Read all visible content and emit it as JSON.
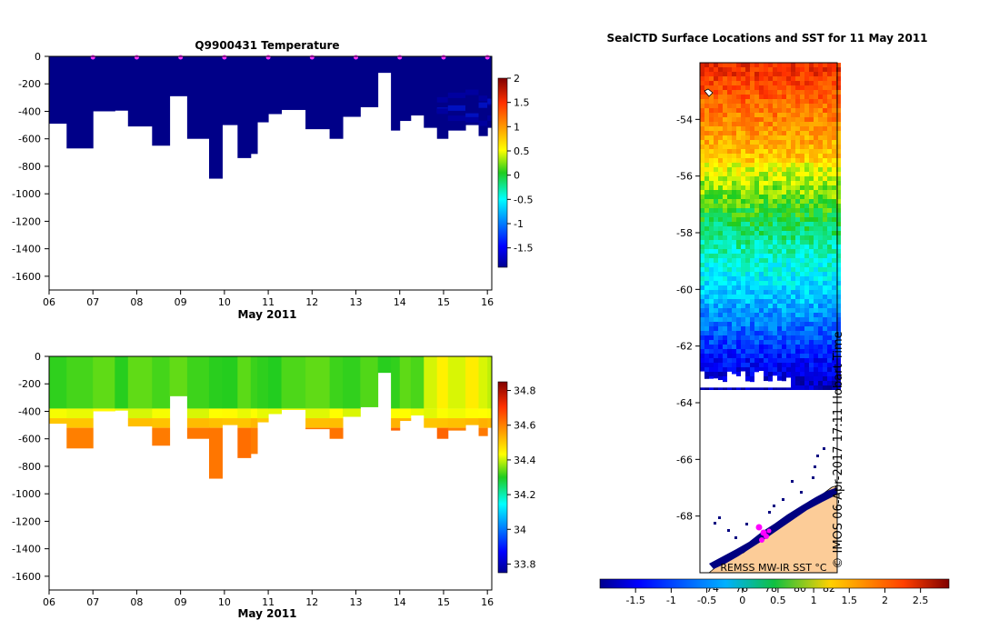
{
  "chart_data": [
    {
      "type": "heatmap",
      "name": "temperature-section",
      "title": "Q9900431  Temperature",
      "xlabel": "May 2011",
      "ylabel": "",
      "xlim": [
        6,
        16.1
      ],
      "ylim": [
        -1700,
        0
      ],
      "x_ticks": [
        "06",
        "07",
        "08",
        "09",
        "10",
        "11",
        "12",
        "13",
        "14",
        "15",
        "16"
      ],
      "y_ticks": [
        0,
        -200,
        -400,
        -600,
        -800,
        -1000,
        -1200,
        -1400,
        -1600
      ],
      "colorbar": {
        "min": -1.9,
        "max": 2,
        "ticks": [
          2,
          1.5,
          1,
          0.5,
          0,
          -0.5,
          -1,
          -1.5
        ]
      },
      "surface_marker_days": [
        7,
        8,
        9,
        10,
        11,
        12,
        13,
        14,
        15,
        16
      ],
      "profiles": [
        {
          "start": 6.0,
          "end": 6.4,
          "depth": 490
        },
        {
          "start": 6.4,
          "end": 7.0,
          "depth": 670
        },
        {
          "start": 7.0,
          "end": 7.5,
          "depth": 400
        },
        {
          "start": 7.5,
          "end": 7.8,
          "depth": 395
        },
        {
          "start": 7.8,
          "end": 8.35,
          "depth": 510
        },
        {
          "start": 8.35,
          "end": 8.75,
          "depth": 650
        },
        {
          "start": 8.75,
          "end": 9.15,
          "depth": 290
        },
        {
          "start": 9.15,
          "end": 9.65,
          "depth": 600
        },
        {
          "start": 9.65,
          "end": 9.95,
          "depth": 890
        },
        {
          "start": 9.95,
          "end": 10.3,
          "depth": 500
        },
        {
          "start": 10.3,
          "end": 10.6,
          "depth": 740
        },
        {
          "start": 10.6,
          "end": 10.75,
          "depth": 710
        },
        {
          "start": 10.75,
          "end": 11.0,
          "depth": 480
        },
        {
          "start": 11.0,
          "end": 11.3,
          "depth": 420
        },
        {
          "start": 11.3,
          "end": 11.85,
          "depth": 390
        },
        {
          "start": 11.85,
          "end": 12.4,
          "depth": 530
        },
        {
          "start": 12.4,
          "end": 12.7,
          "depth": 600
        },
        {
          "start": 12.7,
          "end": 13.1,
          "depth": 440
        },
        {
          "start": 13.1,
          "end": 13.5,
          "depth": 370
        },
        {
          "start": 13.5,
          "end": 13.8,
          "depth": 120
        },
        {
          "start": 13.8,
          "end": 14.0,
          "depth": 540
        },
        {
          "start": 14.0,
          "end": 14.25,
          "depth": 470
        },
        {
          "start": 14.25,
          "end": 14.55,
          "depth": 430
        },
        {
          "start": 14.55,
          "end": 14.85,
          "depth": 520
        },
        {
          "start": 14.85,
          "end": 15.1,
          "depth": 600
        },
        {
          "start": 15.1,
          "end": 15.5,
          "depth": 540
        },
        {
          "start": 15.5,
          "end": 15.8,
          "depth": 500
        },
        {
          "start": 15.8,
          "end": 16.0,
          "depth": 580
        },
        {
          "start": 16.0,
          "end": 16.1,
          "depth": 520
        }
      ]
    },
    {
      "type": "heatmap",
      "name": "salinity-section",
      "title": "",
      "xlabel": "May 2011",
      "ylabel": "",
      "xlim": [
        6,
        16.1
      ],
      "ylim": [
        -1700,
        0
      ],
      "x_ticks": [
        "06",
        "07",
        "08",
        "09",
        "10",
        "11",
        "12",
        "13",
        "14",
        "15",
        "16"
      ],
      "y_ticks": [
        0,
        -200,
        -400,
        -600,
        -800,
        -1000,
        -1200,
        -1400,
        -1600
      ],
      "colorbar": {
        "min": 33.75,
        "max": 34.85,
        "ticks": [
          34.8,
          34.6,
          34.4,
          34.2,
          34,
          33.8
        ]
      },
      "layers": [
        {
          "from": 0,
          "to": 380,
          "value": 34.32
        },
        {
          "from": 380,
          "to": 450,
          "value": 34.42
        },
        {
          "from": 450,
          "to": 520,
          "value": 34.52
        },
        {
          "from": 520,
          "to": 900,
          "value": 34.62
        }
      ]
    },
    {
      "type": "heatmap",
      "name": "sst-map",
      "title": "SealCTD Surface Locations and SST for 11 May 2011",
      "xlabel": "",
      "ylabel": "",
      "ylim": [
        -70,
        -52
      ],
      "y_ticks": [
        -54,
        -56,
        -58,
        -60,
        -62,
        -64,
        -66,
        -68
      ],
      "lon_labels": [
        "74",
        "76",
        "78",
        "80",
        "82"
      ],
      "colorbar": {
        "min": -2,
        "max": 2.9,
        "ticks": [
          -1.5,
          -1,
          -0.5,
          0,
          0.5,
          1,
          1.5,
          2,
          2.5
        ]
      },
      "colorbar_label": "REMSS MW-IR SST °C",
      "stamp": "© IMOS 06-Apr-2017 17:11 Hobart Time"
    }
  ]
}
